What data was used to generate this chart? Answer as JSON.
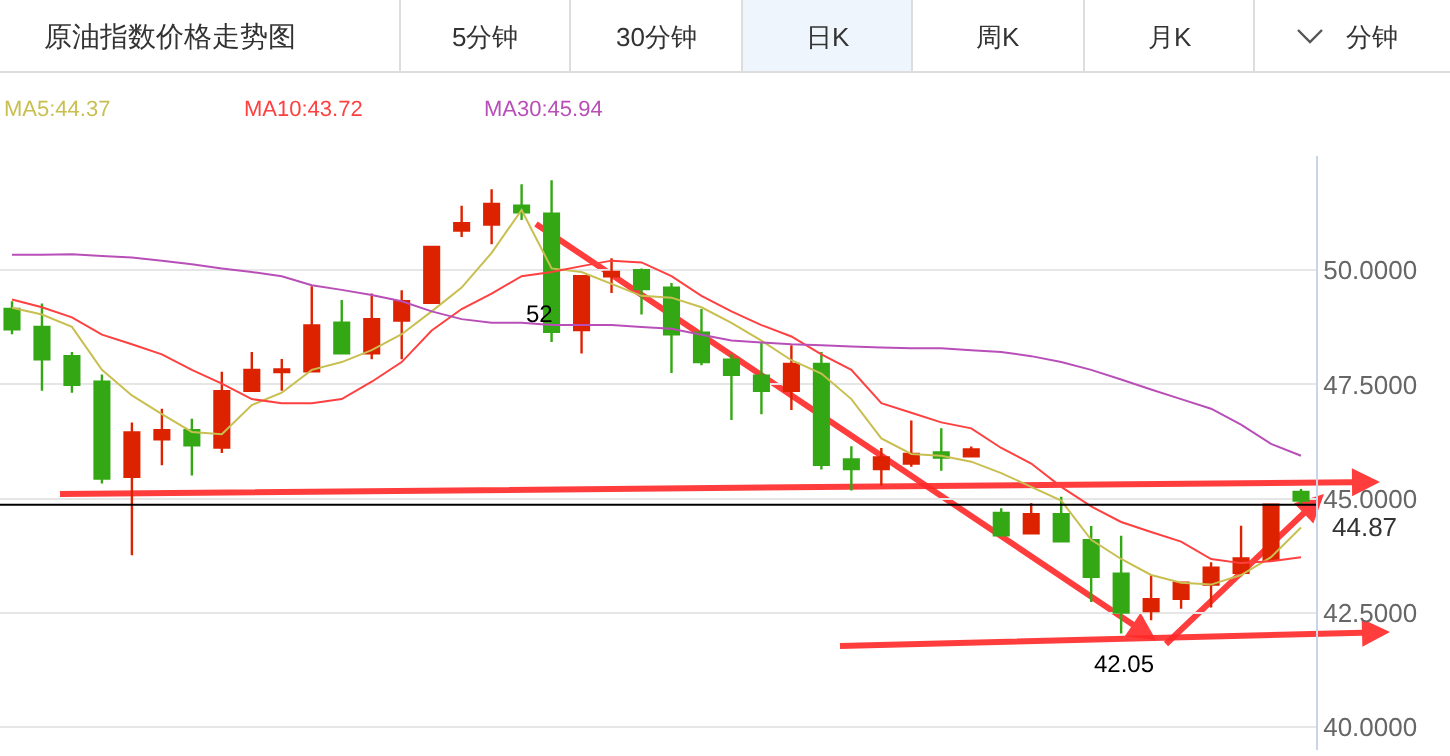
{
  "chart_data": {
    "type": "candlestick",
    "title": "原油指数价格走势图",
    "categories": [
      null,
      null,
      null,
      null,
      null,
      null,
      null,
      null,
      null,
      null,
      null,
      null,
      null,
      null,
      null,
      null,
      null,
      null,
      null,
      null,
      null,
      null,
      null,
      null,
      null,
      null,
      null,
      null,
      null,
      null,
      null,
      null,
      null,
      null,
      null,
      null,
      null,
      null,
      null,
      null,
      null,
      null,
      null,
      null
    ],
    "ohlc": [
      [
        49.15,
        49.32,
        48.6,
        48.71
      ],
      [
        48.76,
        49.27,
        47.36,
        48.05
      ],
      [
        48.12,
        48.21,
        47.32,
        47.49
      ],
      [
        47.56,
        47.72,
        45.33,
        45.44
      ],
      [
        45.48,
        46.67,
        43.76,
        46.45
      ],
      [
        46.3,
        46.97,
        45.73,
        46.5
      ],
      [
        46.5,
        46.75,
        45.51,
        46.17
      ],
      [
        46.12,
        47.78,
        46.0,
        47.35
      ],
      [
        47.36,
        48.21,
        47.34,
        47.82
      ],
      [
        47.77,
        48.06,
        47.36,
        47.83
      ],
      [
        47.79,
        49.65,
        47.79,
        48.79
      ],
      [
        48.85,
        49.35,
        48.18,
        48.18
      ],
      [
        48.18,
        49.49,
        48.05,
        48.93
      ],
      [
        48.9,
        49.56,
        48.05,
        49.32
      ],
      [
        49.29,
        50.51,
        49.29,
        50.51
      ],
      [
        50.87,
        51.41,
        50.73,
        51.03
      ],
      [
        51.0,
        51.77,
        50.57,
        51.45
      ],
      [
        51.41,
        51.88,
        51.1,
        51.27
      ],
      [
        51.24,
        51.97,
        48.43,
        48.65
      ],
      [
        48.69,
        49.89,
        48.18,
        49.87
      ],
      [
        49.87,
        50.26,
        49.5,
        49.96
      ],
      [
        50.0,
        50.04,
        49.03,
        49.59
      ],
      [
        49.62,
        49.72,
        47.75,
        48.6
      ],
      [
        48.63,
        49.15,
        47.92,
        47.99
      ],
      [
        48.04,
        48.16,
        46.72,
        47.71
      ],
      [
        47.69,
        48.42,
        46.85,
        47.36
      ],
      [
        47.36,
        48.36,
        46.94,
        47.95
      ],
      [
        47.95,
        48.21,
        45.64,
        45.74
      ],
      [
        45.86,
        46.15,
        45.18,
        45.65
      ],
      [
        45.65,
        46.11,
        45.29,
        45.9
      ],
      [
        45.77,
        46.71,
        45.7,
        45.98
      ],
      [
        46.01,
        46.54,
        45.61,
        45.9
      ],
      [
        45.93,
        46.14,
        45.93,
        46.08
      ],
      [
        44.69,
        44.79,
        44.2,
        44.2
      ],
      [
        44.24,
        44.9,
        44.24,
        44.66
      ],
      [
        44.66,
        45.04,
        44.07,
        44.07
      ],
      [
        44.09,
        44.4,
        42.74,
        43.29
      ],
      [
        43.36,
        44.19,
        42.05,
        42.51
      ],
      [
        42.54,
        43.33,
        42.34,
        42.8
      ],
      [
        42.81,
        43.16,
        42.59,
        43.16
      ],
      [
        43.12,
        43.61,
        42.62,
        43.49
      ],
      [
        43.38,
        44.41,
        43.3,
        43.69
      ],
      [
        43.66,
        44.87,
        43.66,
        44.87
      ],
      [
        45.15,
        45.21,
        44.87,
        44.96
      ]
    ],
    "series": [
      {
        "name": "MA5:44.37",
        "type": "line",
        "color": "#c8bf50",
        "values": [
          49.18,
          49.03,
          48.76,
          47.82,
          47.26,
          46.85,
          46.46,
          46.41,
          47.05,
          47.32,
          47.82,
          47.99,
          48.25,
          48.6,
          49.1,
          49.62,
          50.38,
          51.32,
          50.04,
          49.96,
          49.7,
          49.44,
          49.4,
          49.19,
          48.85,
          48.46,
          48.03,
          47.74,
          47.18,
          46.32,
          45.98,
          45.94,
          45.81,
          45.56,
          45.26,
          44.96,
          44.1,
          43.68,
          43.33,
          43.16,
          43.12,
          43.33,
          43.72,
          44.37
        ]
      },
      {
        "name": "MA10:43.72",
        "type": "line",
        "color": "#ff4040",
        "values": [
          49.36,
          49.19,
          48.97,
          48.59,
          48.38,
          48.16,
          47.82,
          47.52,
          47.18,
          47.09,
          47.09,
          47.18,
          47.56,
          47.99,
          48.68,
          49.15,
          49.49,
          49.87,
          49.96,
          50.09,
          50.21,
          50.17,
          49.87,
          49.44,
          49.1,
          48.8,
          48.55,
          48.16,
          47.82,
          47.09,
          46.88,
          46.67,
          46.54,
          46.11,
          45.77,
          45.26,
          44.83,
          44.49,
          44.27,
          44.06,
          43.68,
          43.59,
          43.63,
          43.72
        ]
      },
      {
        "name": "MA30:45.94",
        "type": "line",
        "color": "#b84fb8",
        "values": [
          50.34,
          50.34,
          50.35,
          50.31,
          50.28,
          50.21,
          50.13,
          50.04,
          49.96,
          49.87,
          49.67,
          49.57,
          49.46,
          49.32,
          49.1,
          48.93,
          48.85,
          48.85,
          48.8,
          48.8,
          48.8,
          48.76,
          48.72,
          48.59,
          48.46,
          48.42,
          48.38,
          48.36,
          48.33,
          48.31,
          48.29,
          48.29,
          48.25,
          48.21,
          48.12,
          47.99,
          47.82,
          47.61,
          47.39,
          47.18,
          46.97,
          46.62,
          46.2,
          45.94
        ]
      }
    ],
    "annotations": [
      "5分钟",
      "30分钟",
      "日K",
      "周K",
      "月K",
      "分钟",
      "52",
      "42.05"
    ],
    "ref_lines": [
      {
        "axis": "y",
        "value": 44.87,
        "label": "44.87",
        "color": "#000000"
      }
    ],
    "ylim": [
      39.5,
      52.5
    ],
    "yticks": [
      {
        "value": 40,
        "label": "40.0000"
      },
      {
        "value": 42.5,
        "label": "42.5000"
      },
      {
        "value": 45,
        "label": "45.0000"
      },
      {
        "value": 47.5,
        "label": "47.5000"
      },
      {
        "value": 50,
        "label": "50.0000"
      }
    ],
    "grid": "y",
    "tick_labels": "y",
    "line_style": "solid",
    "marker": "none"
  }
}
